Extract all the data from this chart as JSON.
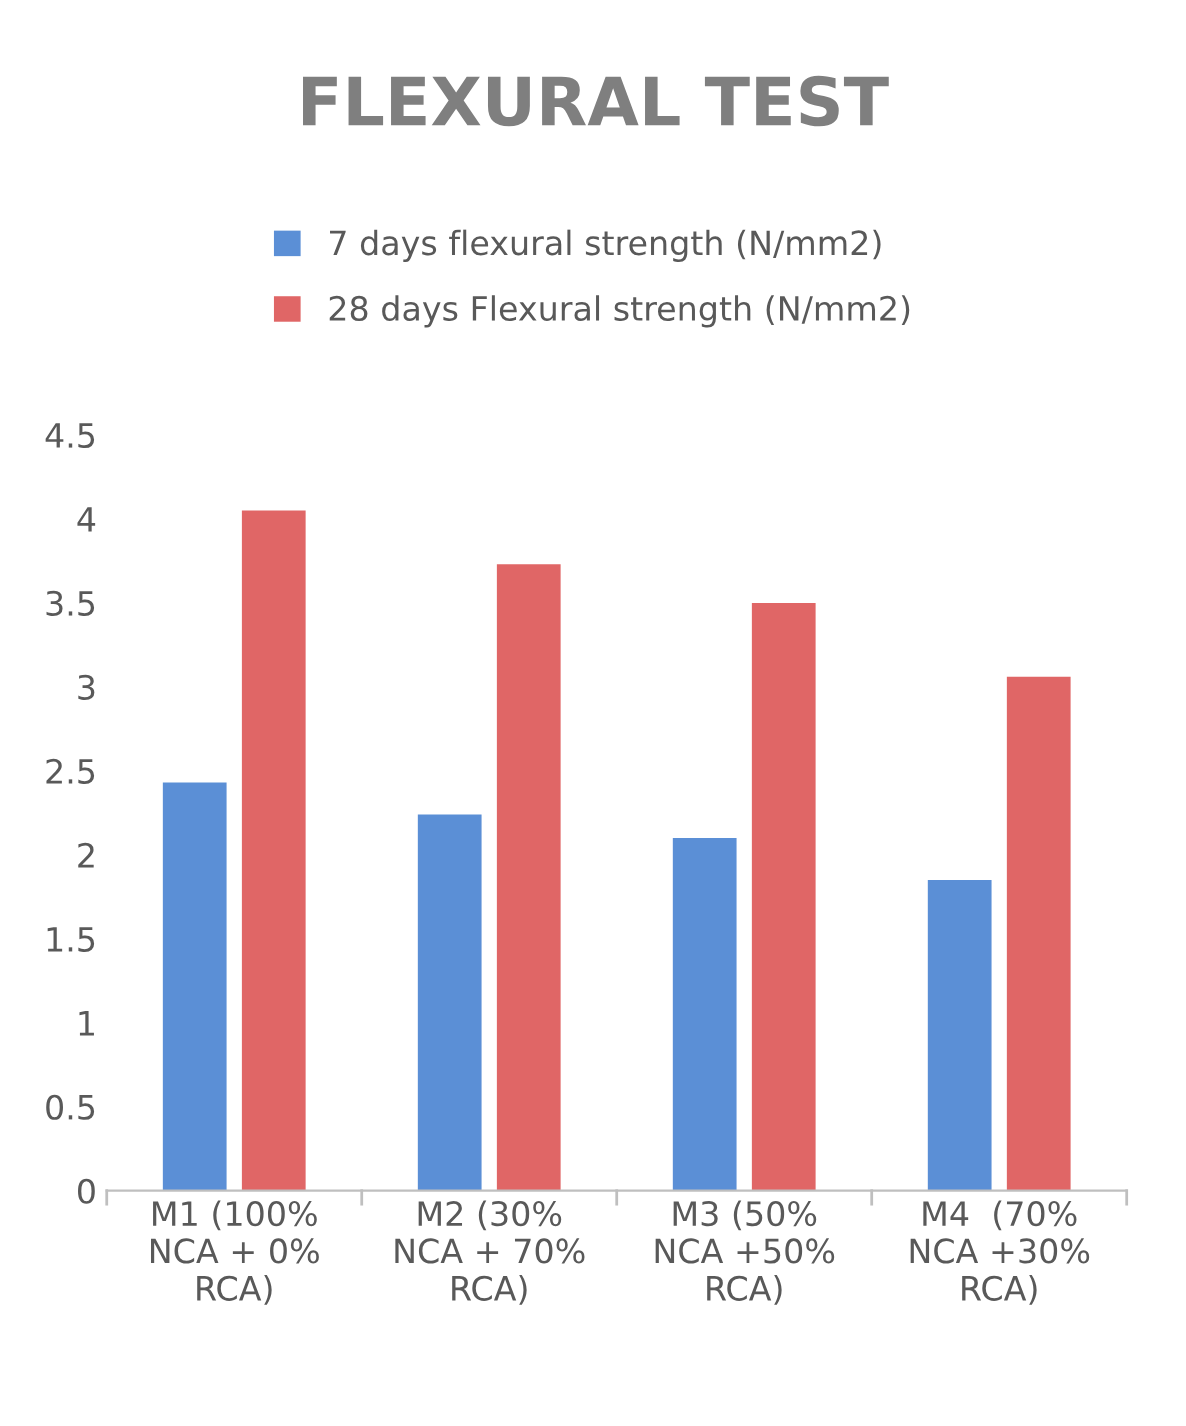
{
  "chart_data": {
    "type": "bar",
    "title": "FLEXURAL TEST",
    "categories": [
      "M1 (100%\nNCA + 0%\nRCA)",
      "M2 (30%\nNCA + 70%\nRCA)",
      "M3 (50%\nNCA +50%\nRCA)",
      "M4  (70%\nNCA +30%\nRCA)"
    ],
    "series": [
      {
        "name": "7 days flexural strength (N/mm2)",
        "color": "#5b8fd6",
        "values": [
          2.43,
          2.24,
          2.1,
          1.85
        ]
      },
      {
        "name": "28 days Flexural strength (N/mm2)",
        "color": "#e06666",
        "values": [
          4.05,
          3.73,
          3.5,
          3.06
        ]
      }
    ],
    "ylim": [
      0,
      4.5
    ],
    "yticks": [
      0,
      0.5,
      1,
      1.5,
      2,
      2.5,
      3,
      3.5,
      4,
      4.5
    ],
    "grid": false,
    "legend": "top"
  }
}
